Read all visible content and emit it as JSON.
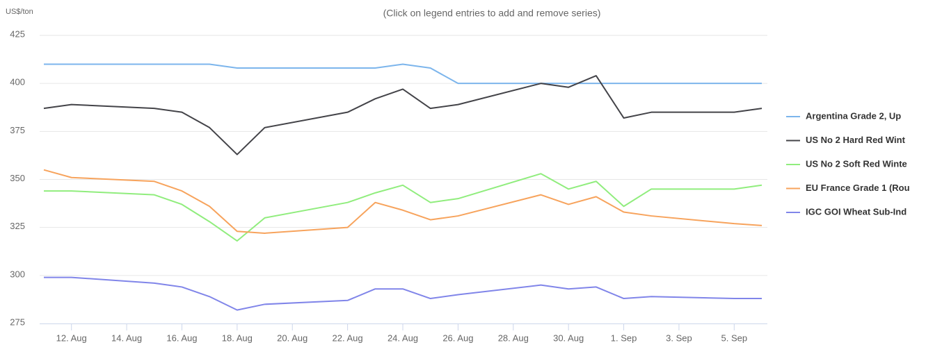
{
  "chart_data": {
    "type": "line",
    "subtitle": "(Click on legend entries to add and remove series)",
    "y_label": "US$/ton",
    "x": [
      "11. Aug",
      "12. Aug",
      "15. Aug",
      "16. Aug",
      "17. Aug",
      "18. Aug",
      "19. Aug",
      "22. Aug",
      "23. Aug",
      "24. Aug",
      "25. Aug",
      "26. Aug",
      "29. Aug",
      "30. Aug",
      "31. Aug",
      "1. Sep",
      "2. Sep",
      "5. Sep",
      "6. Sep"
    ],
    "xlim": [
      "11. Aug",
      "6. Sep"
    ],
    "xticks": [
      "12. Aug",
      "14. Aug",
      "16. Aug",
      "18. Aug",
      "20. Aug",
      "22. Aug",
      "24. Aug",
      "26. Aug",
      "28. Aug",
      "30. Aug",
      "1. Sep",
      "3. Sep",
      "5. Sep"
    ],
    "ylim": [
      275,
      425
    ],
    "yticks": [
      275,
      300,
      325,
      350,
      375,
      400,
      425
    ],
    "grid": true,
    "legend": "right",
    "series": [
      {
        "name": "Argentina Grade 2, Up",
        "color": "#7cb5ec",
        "values": [
          410,
          410,
          410,
          410,
          410,
          408,
          408,
          408,
          408,
          410,
          408,
          400,
          400,
          400,
          400,
          400,
          400,
          400,
          400
        ]
      },
      {
        "name": "US No 2 Hard Red Wint",
        "color": "#434348",
        "values": [
          387,
          389,
          387,
          385,
          377,
          363,
          377,
          385,
          392,
          397,
          387,
          389,
          400,
          398,
          404,
          382,
          385,
          385,
          387
        ]
      },
      {
        "name": "US No 2 Soft Red Winte",
        "color": "#90ed7d",
        "values": [
          344,
          344,
          342,
          337,
          328,
          318,
          330,
          338,
          343,
          347,
          338,
          340,
          353,
          345,
          349,
          336,
          345,
          345,
          347
        ]
      },
      {
        "name": "EU France Grade 1 (Rou",
        "color": "#f7a35c",
        "values": [
          355,
          351,
          349,
          344,
          336,
          323,
          322,
          325,
          338,
          334,
          329,
          331,
          342,
          337,
          341,
          333,
          331,
          327,
          326
        ]
      },
      {
        "name": "IGC GOI Wheat Sub-Ind",
        "color": "#8085e9",
        "values": [
          299,
          299,
          296,
          294,
          289,
          282,
          285,
          287,
          293,
          293,
          288,
          290,
          295,
          293,
          294,
          288,
          289,
          288,
          288
        ]
      }
    ]
  }
}
